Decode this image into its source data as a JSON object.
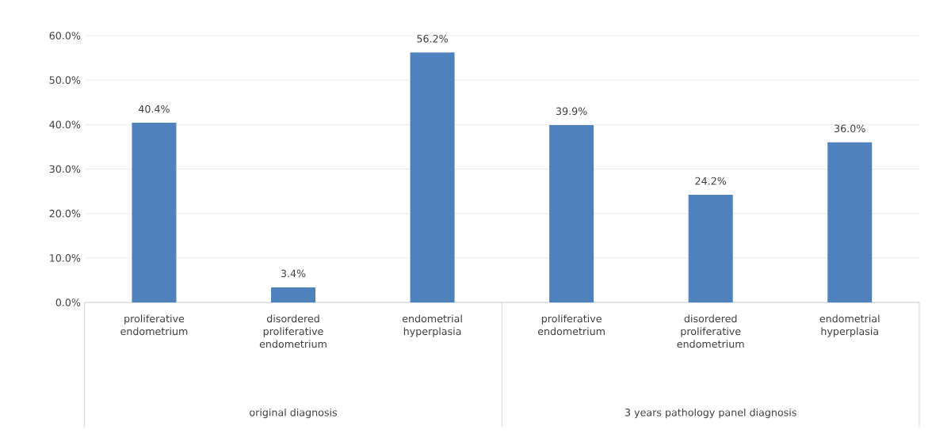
{
  "chart_data": {
    "type": "bar",
    "categories": [
      "proliferative endometrium",
      "disordered proliferative endometrium",
      "endometrial hyperplasia",
      "proliferative endometrium",
      "disordered proliferative endometrium",
      "endometrial hyperplasia"
    ],
    "values": [
      40.4,
      3.4,
      56.2,
      39.9,
      24.2,
      36.0
    ],
    "value_labels": [
      "40.4%",
      "3.4%",
      "56.2%",
      "39.9%",
      "24.2%",
      "36.0%"
    ],
    "color": "#4f81bd",
    "ylim": [
      0,
      60
    ],
    "yticks": [
      {
        "value": 0,
        "label": "0.0%"
      },
      {
        "value": 10,
        "label": "10.0%"
      },
      {
        "value": 20,
        "label": "20.0%"
      },
      {
        "value": 30,
        "label": "30.0%"
      },
      {
        "value": 40,
        "label": "40.0%"
      },
      {
        "value": 50,
        "label": "50.0%"
      },
      {
        "value": 60,
        "label": "60.0%"
      }
    ],
    "grid": "y",
    "annotations": [
      "original diagnosis",
      "3 years pathology panel diagnosis"
    ]
  }
}
